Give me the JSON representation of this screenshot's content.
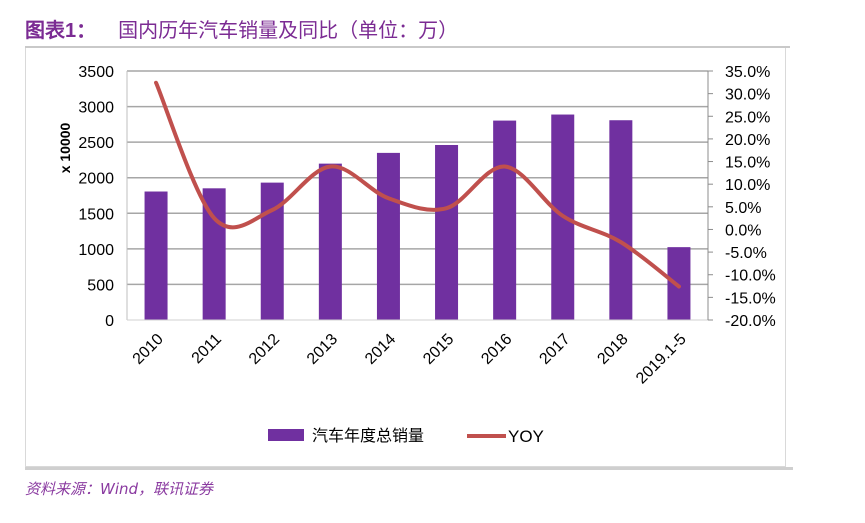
{
  "header": {
    "figure_label": "图表1：",
    "title": "国内历年汽车销量及同比（单位：万）"
  },
  "footer": {
    "source": "资料来源：Wind，联讯证券"
  },
  "colors": {
    "title": "#7b2b93",
    "bar": "#7030a0",
    "line": "#c0504d",
    "grid": "#a6a6a6"
  },
  "chart_data": {
    "type": "bar",
    "title": "国内历年汽车销量及同比（单位：万）",
    "xlabel": "",
    "ylabel": "x 10000",
    "y2label": "",
    "categories": [
      "2010",
      "2011",
      "2012",
      "2013",
      "2014",
      "2015",
      "2016",
      "2017",
      "2018",
      "2019.1-5"
    ],
    "ylim": [
      0,
      3500
    ],
    "y_ticks": [
      "0",
      "500",
      "1000",
      "1500",
      "2000",
      "2500",
      "3000",
      "3500"
    ],
    "y_tick_values": [
      0,
      500,
      1000,
      1500,
      2000,
      2500,
      3000,
      3500
    ],
    "y2lim": [
      -20,
      35
    ],
    "y2_ticks": [
      "-20.0%",
      "-15.0%",
      "-10.0%",
      "-5.0%",
      "0.0%",
      "5.0%",
      "10.0%",
      "15.0%",
      "20.0%",
      "25.0%",
      "30.0%",
      "35.0%"
    ],
    "y2_tick_values": [
      -20,
      -15,
      -10,
      -5,
      0,
      5,
      10,
      15,
      20,
      25,
      30,
      35
    ],
    "grid": true,
    "legend_position": "bottom",
    "series": [
      {
        "name": "汽车年度总销量",
        "type": "bar",
        "axis": "left",
        "values": [
          1806,
          1851,
          1931,
          2198,
          2349,
          2460,
          2803,
          2888,
          2808,
          1024
        ]
      },
      {
        "name": "YOY",
        "type": "line",
        "axis": "right",
        "smooth": true,
        "values": [
          32.4,
          2.5,
          4.3,
          13.9,
          6.9,
          4.7,
          13.9,
          3.0,
          -2.8,
          -12.6
        ]
      }
    ]
  }
}
